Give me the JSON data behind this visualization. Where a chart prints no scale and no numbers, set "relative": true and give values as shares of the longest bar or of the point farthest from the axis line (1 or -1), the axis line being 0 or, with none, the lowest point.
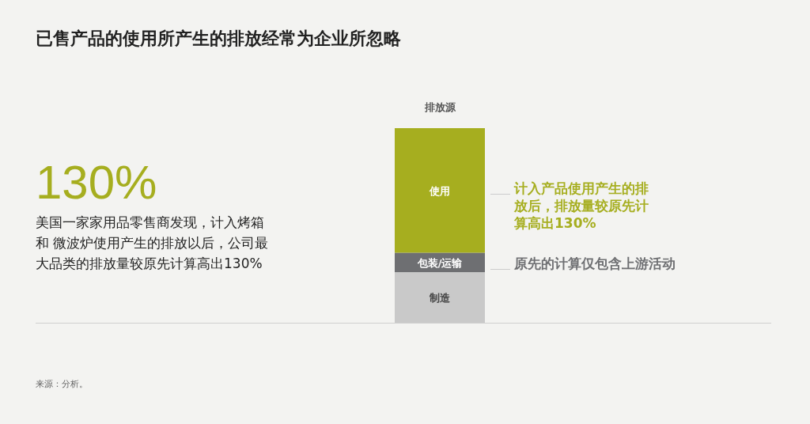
{
  "chart_data": {
    "type": "bar",
    "stacked": true,
    "relative": true,
    "title": "已售产品的使用所产生的排放经常为企业所忽略",
    "legend_title": "排放源",
    "categories": [
      null
    ],
    "series": [
      {
        "name": "制造",
        "color": "#c9c9c9",
        "values": [
          0.26
        ]
      },
      {
        "name": "包装/运输",
        "color": "#6e6f72",
        "values": [
          0.1
        ]
      },
      {
        "name": "使用",
        "color": "#a6ae1f",
        "values": [
          0.64
        ]
      }
    ],
    "annotations": [
      "130%",
      "美国一家家用品零售商发现，计入烤箱和 微波炉使用产生的排放以后，公司最大品类的排放量较原先计算高出130%",
      "计入产品使用产生的排放后，排放量较原先计算高出130%",
      "原先的计算仅包含上游活动",
      "来源：分析。"
    ]
  }
}
